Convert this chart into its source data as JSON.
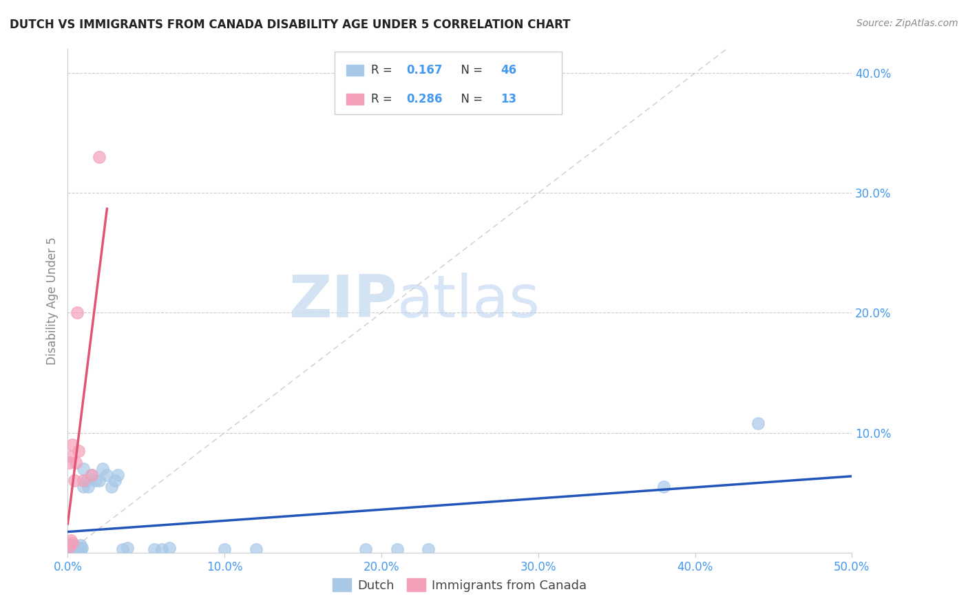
{
  "title": "DUTCH VS IMMIGRANTS FROM CANADA DISABILITY AGE UNDER 5 CORRELATION CHART",
  "source": "Source: ZipAtlas.com",
  "ylabel": "Disability Age Under 5",
  "xlim": [
    0.0,
    0.5
  ],
  "ylim": [
    0.0,
    0.42
  ],
  "xtick_vals": [
    0.0,
    0.1,
    0.2,
    0.3,
    0.4,
    0.5
  ],
  "xtick_labels": [
    "0.0%",
    "10.0%",
    "20.0%",
    "30.0%",
    "40.0%",
    "50.0%"
  ],
  "ytick_vals": [
    0.1,
    0.2,
    0.3,
    0.4
  ],
  "ytick_labels": [
    "10.0%",
    "20.0%",
    "30.0%",
    "40.0%"
  ],
  "legend_R1": "0.167",
  "legend_N1": "46",
  "legend_R2": "0.286",
  "legend_N2": "13",
  "dutch_color": "#a8c8e8",
  "canada_color": "#f4a0b8",
  "dutch_line_color": "#2255bb",
  "canada_line_color": "#e05575",
  "diag_color": "#cccccc",
  "background_color": "#ffffff",
  "tick_color": "#4499ee",
  "watermark_zip": "ZIP",
  "watermark_atlas": "atlas",
  "dutch_x": [
    0.0005,
    0.001,
    0.001,
    0.001,
    0.0015,
    0.002,
    0.002,
    0.002,
    0.002,
    0.003,
    0.003,
    0.003,
    0.004,
    0.004,
    0.005,
    0.005,
    0.006,
    0.006,
    0.007,
    0.008,
    0.008,
    0.009,
    0.01,
    0.01,
    0.012,
    0.013,
    0.015,
    0.018,
    0.02,
    0.022,
    0.025,
    0.028,
    0.03,
    0.032,
    0.035,
    0.038,
    0.055,
    0.06,
    0.065,
    0.1,
    0.12,
    0.19,
    0.21,
    0.23,
    0.38,
    0.44
  ],
  "dutch_y": [
    0.001,
    0.002,
    0.003,
    0.004,
    0.002,
    0.001,
    0.003,
    0.005,
    0.006,
    0.002,
    0.004,
    0.006,
    0.001,
    0.003,
    0.002,
    0.005,
    0.002,
    0.004,
    0.003,
    0.002,
    0.006,
    0.004,
    0.07,
    0.055,
    0.06,
    0.055,
    0.065,
    0.06,
    0.06,
    0.07,
    0.065,
    0.055,
    0.06,
    0.065,
    0.003,
    0.004,
    0.003,
    0.003,
    0.004,
    0.003,
    0.003,
    0.003,
    0.003,
    0.003,
    0.055,
    0.108
  ],
  "canada_x": [
    0.001,
    0.001,
    0.002,
    0.002,
    0.003,
    0.003,
    0.004,
    0.005,
    0.006,
    0.007,
    0.01,
    0.015,
    0.02
  ],
  "canada_y": [
    0.005,
    0.075,
    0.01,
    0.08,
    0.008,
    0.09,
    0.06,
    0.075,
    0.2,
    0.085,
    0.06,
    0.065,
    0.33
  ]
}
